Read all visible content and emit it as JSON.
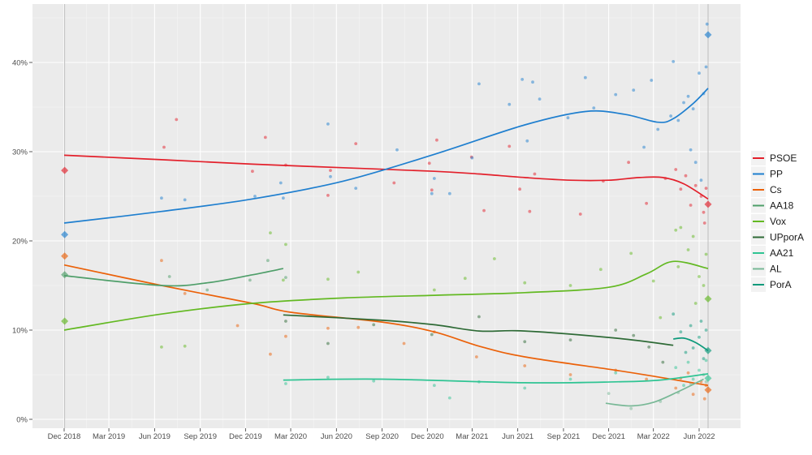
{
  "chart_data": {
    "type": "line",
    "title": "",
    "xlabel": "",
    "ylabel": "",
    "ylim": [
      0,
      44.5
    ],
    "y_ticks": [
      "0%",
      "10%",
      "20%",
      "30%",
      "40%"
    ],
    "y_tick_values": [
      0,
      10,
      20,
      30,
      40
    ],
    "x_ticks": [
      "Dec 2018",
      "Mar 2019",
      "Jun 2019",
      "Sep 2019",
      "Dec 2019",
      "Mar 2020",
      "Jun 2020",
      "Sep 2020",
      "Dec 2020",
      "Mar 2021",
      "Jun 2021",
      "Sep 2021",
      "Dec 2021",
      "Mar 2022",
      "Jun 2022"
    ],
    "x_tick_dates": [
      "2018-12-01",
      "2019-03-01",
      "2019-06-01",
      "2019-09-01",
      "2019-12-01",
      "2020-03-01",
      "2020-06-01",
      "2020-09-01",
      "2020-12-01",
      "2021-03-01",
      "2021-06-01",
      "2021-09-01",
      "2021-12-01",
      "2022-03-01",
      "2022-06-01"
    ],
    "grid": true,
    "legend_position": "right",
    "election_dates": [
      "2018-12-02",
      "2022-06-19"
    ],
    "series": [
      {
        "name": "PSOE",
        "color": "#e3202b",
        "trend": [
          [
            "2018-12-01",
            29.6
          ],
          [
            "2019-06-15",
            29.1
          ],
          [
            "2019-12-15",
            28.6
          ],
          [
            "2020-06-15",
            28.2
          ],
          [
            "2020-12-15",
            27.8
          ],
          [
            "2021-03-15",
            27.5
          ],
          [
            "2021-06-15",
            27.1
          ],
          [
            "2021-09-15",
            26.8
          ],
          [
            "2021-12-01",
            26.8
          ],
          [
            "2022-02-01",
            27.1
          ],
          [
            "2022-03-20",
            27.1
          ],
          [
            "2022-05-01",
            26.4
          ],
          [
            "2022-06-19",
            24.7
          ]
        ],
        "polls": [
          [
            "2019-06-20",
            30.5
          ],
          [
            "2019-07-15",
            33.6
          ],
          [
            "2019-12-15",
            27.8
          ],
          [
            "2020-01-10",
            31.6
          ],
          [
            "2020-02-20",
            28.5
          ],
          [
            "2020-05-15",
            25.1
          ],
          [
            "2020-05-20",
            27.9
          ],
          [
            "2020-07-10",
            30.9
          ],
          [
            "2020-09-25",
            26.5
          ],
          [
            "2020-12-05",
            28.7
          ],
          [
            "2020-12-10",
            25.7
          ],
          [
            "2020-12-20",
            31.3
          ],
          [
            "2021-02-28",
            29.4
          ],
          [
            "2021-03-25",
            23.4
          ],
          [
            "2021-05-15",
            30.6
          ],
          [
            "2021-06-05",
            25.8
          ],
          [
            "2021-06-25",
            23.3
          ],
          [
            "2021-07-05",
            27.5
          ],
          [
            "2021-10-05",
            23.0
          ],
          [
            "2021-11-20",
            26.7
          ],
          [
            "2022-01-10",
            28.8
          ],
          [
            "2022-02-15",
            24.2
          ],
          [
            "2022-03-25",
            27.0
          ],
          [
            "2022-04-15",
            28.0
          ],
          [
            "2022-04-25",
            25.8
          ],
          [
            "2022-05-05",
            27.3
          ],
          [
            "2022-05-15",
            24.0
          ],
          [
            "2022-05-25",
            26.2
          ],
          [
            "2022-06-05",
            25.0
          ],
          [
            "2022-06-10",
            23.2
          ],
          [
            "2022-06-15",
            25.9
          ],
          [
            "2022-06-12",
            22.0
          ]
        ],
        "results": [
          [
            "2018-12-02",
            27.9
          ],
          [
            "2022-06-19",
            24.1
          ]
        ]
      },
      {
        "name": "PP",
        "color": "#1f7fcf",
        "trend": [
          [
            "2018-12-01",
            22.0
          ],
          [
            "2019-06-15",
            23.3
          ],
          [
            "2019-12-15",
            24.7
          ],
          [
            "2020-06-15",
            26.7
          ],
          [
            "2020-12-15",
            29.7
          ],
          [
            "2021-06-15",
            33.0
          ],
          [
            "2021-10-15",
            34.5
          ],
          [
            "2022-01-01",
            34.2
          ],
          [
            "2022-03-10",
            33.3
          ],
          [
            "2022-04-10",
            33.7
          ],
          [
            "2022-05-20",
            35.4
          ],
          [
            "2022-06-19",
            37.1
          ]
        ],
        "polls": [
          [
            "2019-06-15",
            24.8
          ],
          [
            "2019-08-01",
            24.6
          ],
          [
            "2019-12-20",
            25.0
          ],
          [
            "2020-02-10",
            26.5
          ],
          [
            "2020-02-15",
            24.8
          ],
          [
            "2020-05-15",
            33.1
          ],
          [
            "2020-05-20",
            27.2
          ],
          [
            "2020-07-10",
            25.9
          ],
          [
            "2020-10-01",
            30.2
          ],
          [
            "2020-12-10",
            25.3
          ],
          [
            "2020-12-15",
            27.0
          ],
          [
            "2021-01-15",
            25.3
          ],
          [
            "2021-03-01",
            29.3
          ],
          [
            "2021-03-15",
            37.6
          ],
          [
            "2021-05-15",
            35.3
          ],
          [
            "2021-06-10",
            38.1
          ],
          [
            "2021-06-20",
            31.2
          ],
          [
            "2021-07-01",
            37.8
          ],
          [
            "2021-07-15",
            35.9
          ],
          [
            "2021-09-10",
            33.8
          ],
          [
            "2021-10-15",
            38.3
          ],
          [
            "2021-11-01",
            34.9
          ],
          [
            "2021-12-15",
            36.4
          ],
          [
            "2022-01-20",
            36.9
          ],
          [
            "2022-02-10",
            30.5
          ],
          [
            "2022-02-25",
            38.0
          ],
          [
            "2022-03-10",
            32.5
          ],
          [
            "2022-04-05",
            34.0
          ],
          [
            "2022-04-10",
            40.1
          ],
          [
            "2022-04-20",
            33.5
          ],
          [
            "2022-05-01",
            35.5
          ],
          [
            "2022-05-10",
            36.2
          ],
          [
            "2022-05-20",
            34.8
          ],
          [
            "2022-06-01",
            38.8
          ],
          [
            "2022-06-10",
            36.5
          ],
          [
            "2022-06-15",
            39.5
          ],
          [
            "2022-06-17",
            44.3
          ],
          [
            "2022-05-25",
            28.8
          ],
          [
            "2022-06-05",
            26.8
          ],
          [
            "2022-05-15",
            30.2
          ]
        ],
        "results": [
          [
            "2018-12-02",
            20.7
          ],
          [
            "2022-06-19",
            43.1
          ]
        ]
      },
      {
        "name": "Cs",
        "color": "#eb6109",
        "trend": [
          [
            "2018-12-01",
            17.3
          ],
          [
            "2019-06-15",
            15.0
          ],
          [
            "2019-12-15",
            13.0
          ],
          [
            "2020-03-01",
            12.0
          ],
          [
            "2020-09-01",
            10.9
          ],
          [
            "2020-12-15",
            9.8
          ],
          [
            "2021-03-15",
            8.2
          ],
          [
            "2021-06-15",
            7.0
          ],
          [
            "2021-12-15",
            5.5
          ],
          [
            "2022-03-15",
            4.7
          ],
          [
            "2022-06-19",
            3.8
          ]
        ],
        "polls": [
          [
            "2019-06-15",
            17.8
          ],
          [
            "2019-08-01",
            14.1
          ],
          [
            "2019-11-15",
            10.5
          ],
          [
            "2020-01-20",
            7.3
          ],
          [
            "2020-02-20",
            9.3
          ],
          [
            "2020-05-15",
            10.2
          ],
          [
            "2020-07-15",
            10.3
          ],
          [
            "2020-10-15",
            8.5
          ],
          [
            "2020-12-15",
            9.8
          ],
          [
            "2021-03-10",
            7.0
          ],
          [
            "2021-06-15",
            6.0
          ],
          [
            "2021-09-15",
            5.0
          ],
          [
            "2021-12-15",
            5.5
          ],
          [
            "2022-02-15",
            4.5
          ],
          [
            "2022-04-15",
            3.5
          ],
          [
            "2022-05-10",
            5.2
          ],
          [
            "2022-05-20",
            2.8
          ],
          [
            "2022-06-05",
            4.2
          ],
          [
            "2022-06-12",
            2.3
          ],
          [
            "2022-06-15",
            3.8
          ],
          [
            "2022-04-25",
            4.6
          ]
        ],
        "results": [
          [
            "2018-12-02",
            18.3
          ],
          [
            "2022-06-19",
            3.3
          ]
        ]
      },
      {
        "name": "AA18",
        "color": "#4e9e69",
        "trend": [
          [
            "2018-12-01",
            16.1
          ],
          [
            "2019-06-15",
            15.0
          ],
          [
            "2019-09-15",
            15.3
          ],
          [
            "2019-12-15",
            16.2
          ],
          [
            "2020-02-15",
            16.9
          ]
        ],
        "polls": [
          [
            "2019-07-01",
            16.0
          ],
          [
            "2019-09-15",
            14.5
          ],
          [
            "2019-12-10",
            15.6
          ],
          [
            "2020-01-15",
            17.8
          ],
          [
            "2020-02-20",
            15.9
          ]
        ],
        "results": [
          [
            "2018-12-02",
            16.2
          ]
        ]
      },
      {
        "name": "Vox",
        "color": "#63b922",
        "trend": [
          [
            "2018-12-01",
            10.0
          ],
          [
            "2019-06-15",
            11.8
          ],
          [
            "2019-12-15",
            13.0
          ],
          [
            "2020-06-15",
            13.6
          ],
          [
            "2020-12-15",
            13.9
          ],
          [
            "2021-06-15",
            14.2
          ],
          [
            "2021-12-01",
            14.8
          ],
          [
            "2022-02-15",
            16.3
          ],
          [
            "2022-04-10",
            17.7
          ],
          [
            "2022-06-19",
            16.9
          ]
        ],
        "polls": [
          [
            "2019-06-15",
            8.1
          ],
          [
            "2019-08-01",
            8.2
          ],
          [
            "2020-01-20",
            20.9
          ],
          [
            "2020-02-20",
            19.6
          ],
          [
            "2020-02-15",
            15.6
          ],
          [
            "2020-05-15",
            15.7
          ],
          [
            "2020-07-15",
            16.5
          ],
          [
            "2020-12-15",
            14.5
          ],
          [
            "2021-02-15",
            15.8
          ],
          [
            "2021-04-15",
            18.0
          ],
          [
            "2021-06-15",
            15.3
          ],
          [
            "2021-09-15",
            15.0
          ],
          [
            "2021-11-15",
            16.8
          ],
          [
            "2022-01-15",
            18.6
          ],
          [
            "2022-03-15",
            11.4
          ],
          [
            "2022-03-01",
            15.5
          ],
          [
            "2022-04-15",
            21.2
          ],
          [
            "2022-04-20",
            17.1
          ],
          [
            "2022-05-10",
            19.0
          ],
          [
            "2022-05-20",
            20.5
          ],
          [
            "2022-06-01",
            16.0
          ],
          [
            "2022-06-10",
            15.0
          ],
          [
            "2022-06-15",
            18.5
          ],
          [
            "2022-05-25",
            13.0
          ],
          [
            "2022-04-25",
            21.5
          ]
        ],
        "results": [
          [
            "2018-12-02",
            11.0
          ],
          [
            "2022-06-19",
            13.5
          ]
        ]
      },
      {
        "name": "UPporA",
        "color": "#2e6a36",
        "trend": [
          [
            "2020-02-15",
            11.7
          ],
          [
            "2020-09-01",
            11.1
          ],
          [
            "2020-12-15",
            10.6
          ],
          [
            "2021-03-15",
            9.9
          ],
          [
            "2021-06-15",
            9.9
          ],
          [
            "2021-12-15",
            9.1
          ],
          [
            "2022-04-10",
            8.3
          ]
        ],
        "polls": [
          [
            "2020-02-20",
            11.0
          ],
          [
            "2020-05-15",
            8.5
          ],
          [
            "2020-08-15",
            10.6
          ],
          [
            "2020-12-10",
            9.5
          ],
          [
            "2021-03-15",
            11.5
          ],
          [
            "2021-06-15",
            8.7
          ],
          [
            "2021-09-15",
            8.9
          ],
          [
            "2021-12-15",
            10.0
          ],
          [
            "2022-01-20",
            9.4
          ],
          [
            "2022-02-20",
            8.1
          ],
          [
            "2022-03-20",
            6.4
          ]
        ],
        "results": []
      },
      {
        "name": "AA21",
        "color": "#2fc493",
        "trend": [
          [
            "2020-02-15",
            4.4
          ],
          [
            "2020-09-01",
            4.5
          ],
          [
            "2021-06-15",
            4.1
          ],
          [
            "2021-12-15",
            4.2
          ],
          [
            "2022-03-15",
            4.4
          ],
          [
            "2022-06-19",
            5.1
          ]
        ],
        "polls": [
          [
            "2020-02-20",
            4.0
          ],
          [
            "2020-05-15",
            4.7
          ],
          [
            "2020-08-15",
            4.3
          ],
          [
            "2020-12-15",
            3.8
          ],
          [
            "2021-01-15",
            2.4
          ],
          [
            "2021-03-15",
            4.2
          ],
          [
            "2021-06-15",
            3.5
          ],
          [
            "2021-09-15",
            4.5
          ],
          [
            "2021-12-15",
            5.2
          ],
          [
            "2022-04-15",
            5.8
          ],
          [
            "2022-05-10",
            6.4
          ],
          [
            "2022-05-20",
            4.5
          ],
          [
            "2022-06-01",
            5.5
          ],
          [
            "2022-06-15",
            6.6
          ],
          [
            "2022-05-01",
            3.8
          ]
        ],
        "results": [
          [
            "2022-06-19",
            4.6
          ]
        ]
      },
      {
        "name": "AL",
        "color": "#78b896",
        "trend": [
          [
            "2021-11-25",
            1.8
          ],
          [
            "2022-01-15",
            1.5
          ],
          [
            "2022-03-01",
            1.9
          ],
          [
            "2022-04-20",
            3.1
          ],
          [
            "2022-06-10",
            4.5
          ]
        ],
        "polls": [
          [
            "2021-12-01",
            2.9
          ],
          [
            "2022-01-15",
            1.2
          ],
          [
            "2022-03-15",
            2.0
          ],
          [
            "2022-04-20",
            3.0
          ],
          [
            "2022-05-15",
            4.0
          ],
          [
            "2022-06-10",
            5.0
          ],
          [
            "2022-06-15",
            4.2
          ]
        ],
        "results": []
      },
      {
        "name": "PorA",
        "color": "#0c9a7b",
        "trend": [
          [
            "2022-04-10",
            9.0
          ],
          [
            "2022-05-01",
            9.1
          ],
          [
            "2022-05-25",
            8.6
          ],
          [
            "2022-06-19",
            7.7
          ]
        ],
        "polls": [
          [
            "2022-04-10",
            11.8
          ],
          [
            "2022-04-25",
            9.8
          ],
          [
            "2022-05-05",
            7.5
          ],
          [
            "2022-05-15",
            10.5
          ],
          [
            "2022-05-20",
            8.0
          ],
          [
            "2022-06-01",
            9.2
          ],
          [
            "2022-06-10",
            6.8
          ],
          [
            "2022-06-15",
            10.0
          ],
          [
            "2022-06-05",
            11.0
          ]
        ],
        "results": [
          [
            "2022-06-19",
            7.7
          ]
        ]
      }
    ]
  }
}
